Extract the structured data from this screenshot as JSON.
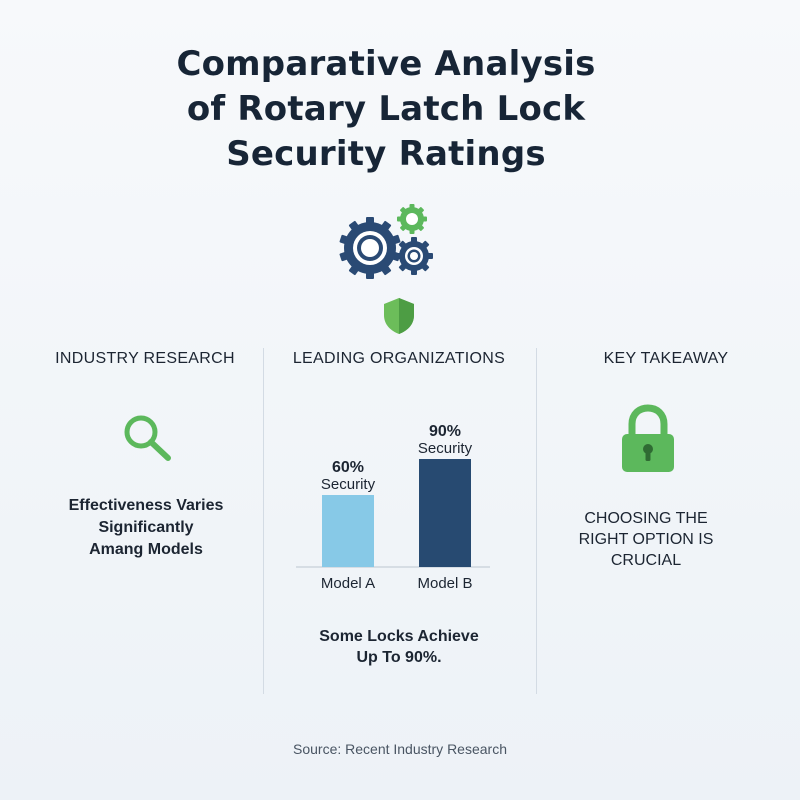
{
  "title": {
    "lines": [
      "Comparative Analysis",
      "of Rotary Latch Lock",
      "Security Ratings"
    ]
  },
  "icons": {
    "top": "gears-icon",
    "shield": "shield-icon",
    "research": "magnifier-icon",
    "takeaway": "lock-icon"
  },
  "colors": {
    "navy": "#2a4a74",
    "green": "#5cb85c",
    "light_blue": "#87c9e7",
    "dark_blue": "#274a71"
  },
  "columns": {
    "research": {
      "heading": "INDUSTRY RESEARCH",
      "lines": [
        "Effectiveness Varies",
        "Significantly",
        "Amang Models"
      ]
    },
    "orgs": {
      "heading": "LEADING ORGANIZATIONS",
      "lines": [
        "Some Locks Achieve",
        "Up To 90%."
      ]
    },
    "takeaway": {
      "heading": "KEY TAKEAWAY",
      "lines": [
        "CHOOSING THE",
        "RIGHT OPTION IS",
        "CRUCIAL"
      ]
    }
  },
  "chart_data": {
    "type": "bar",
    "categories": [
      "Model A",
      "Model B"
    ],
    "values": [
      60,
      90
    ],
    "value_labels": [
      "60%",
      "90%"
    ],
    "sub_labels": [
      "Security",
      "Security"
    ],
    "colors": [
      "#87c9e7",
      "#274a71"
    ],
    "ylim": [
      0,
      100
    ],
    "grid": false,
    "legend": "none"
  },
  "source": "Source: Recent Industry Research"
}
